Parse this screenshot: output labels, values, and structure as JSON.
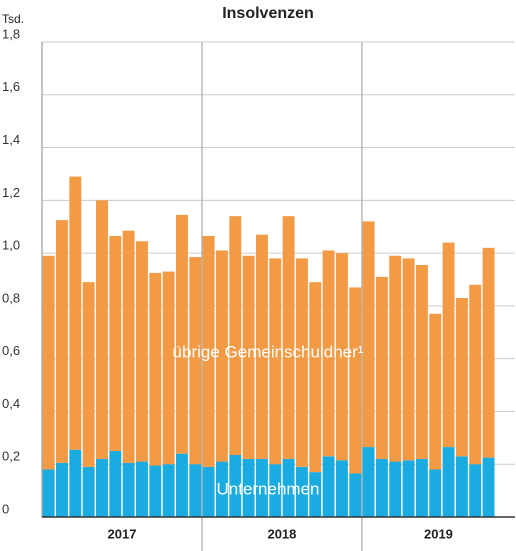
{
  "chart_data": {
    "type": "stacked_bar",
    "title": "Insolvenzen",
    "y_unit": "Tsd.",
    "categories": [
      null,
      null,
      null,
      null,
      null,
      null,
      null,
      null,
      null,
      null,
      null,
      null,
      null,
      null,
      null,
      null,
      null,
      null,
      null,
      null,
      null,
      null,
      null,
      null,
      null,
      null,
      null,
      null,
      null,
      null,
      null,
      null,
      null,
      null
    ],
    "groups": [
      {
        "label": "2017",
        "size": 12
      },
      {
        "label": "2018",
        "size": 12
      },
      {
        "label": "2019",
        "size": 10
      }
    ],
    "series": [
      {
        "name": "Unternehmen",
        "color": "#1aabe0",
        "values": [
          0.18,
          0.205,
          0.255,
          0.19,
          0.22,
          0.25,
          0.205,
          0.21,
          0.195,
          0.2,
          0.24,
          0.2,
          0.19,
          0.21,
          0.235,
          0.22,
          0.22,
          0.2,
          0.22,
          0.19,
          0.17,
          0.23,
          0.215,
          0.165,
          0.265,
          0.22,
          0.21,
          0.215,
          0.22,
          0.18,
          0.265,
          0.23,
          0.2,
          0.225
        ]
      },
      {
        "name": "übrige Gemeinschuldner¹",
        "color": "#f39a45",
        "values": [
          0.81,
          0.92,
          1.035,
          0.7,
          0.98,
          0.815,
          0.88,
          0.835,
          0.73,
          0.73,
          0.905,
          0.785,
          0.875,
          0.8,
          0.905,
          0.77,
          0.85,
          0.78,
          0.92,
          0.79,
          0.72,
          0.78,
          0.785,
          0.705,
          0.855,
          0.69,
          0.78,
          0.765,
          0.735,
          0.59,
          0.775,
          0.6,
          0.68,
          0.795
        ]
      }
    ],
    "ylim": [
      0,
      1.8
    ],
    "yticks": [
      0,
      {
        "value": 0.2,
        "label": "0,2"
      },
      {
        "value": 0.4,
        "label": "0,4"
      },
      {
        "value": 0.6,
        "label": "0,6"
      },
      {
        "value": 0.8,
        "label": "0,8"
      },
      {
        "value": 1.0,
        "label": "1,0"
      },
      {
        "value": 1.2,
        "label": "1,2"
      },
      {
        "value": 1.4,
        "label": "1,4"
      },
      {
        "value": 1.6,
        "label": "1,6"
      },
      {
        "value": 1.8,
        "label": "1,8"
      }
    ],
    "grid": true
  }
}
